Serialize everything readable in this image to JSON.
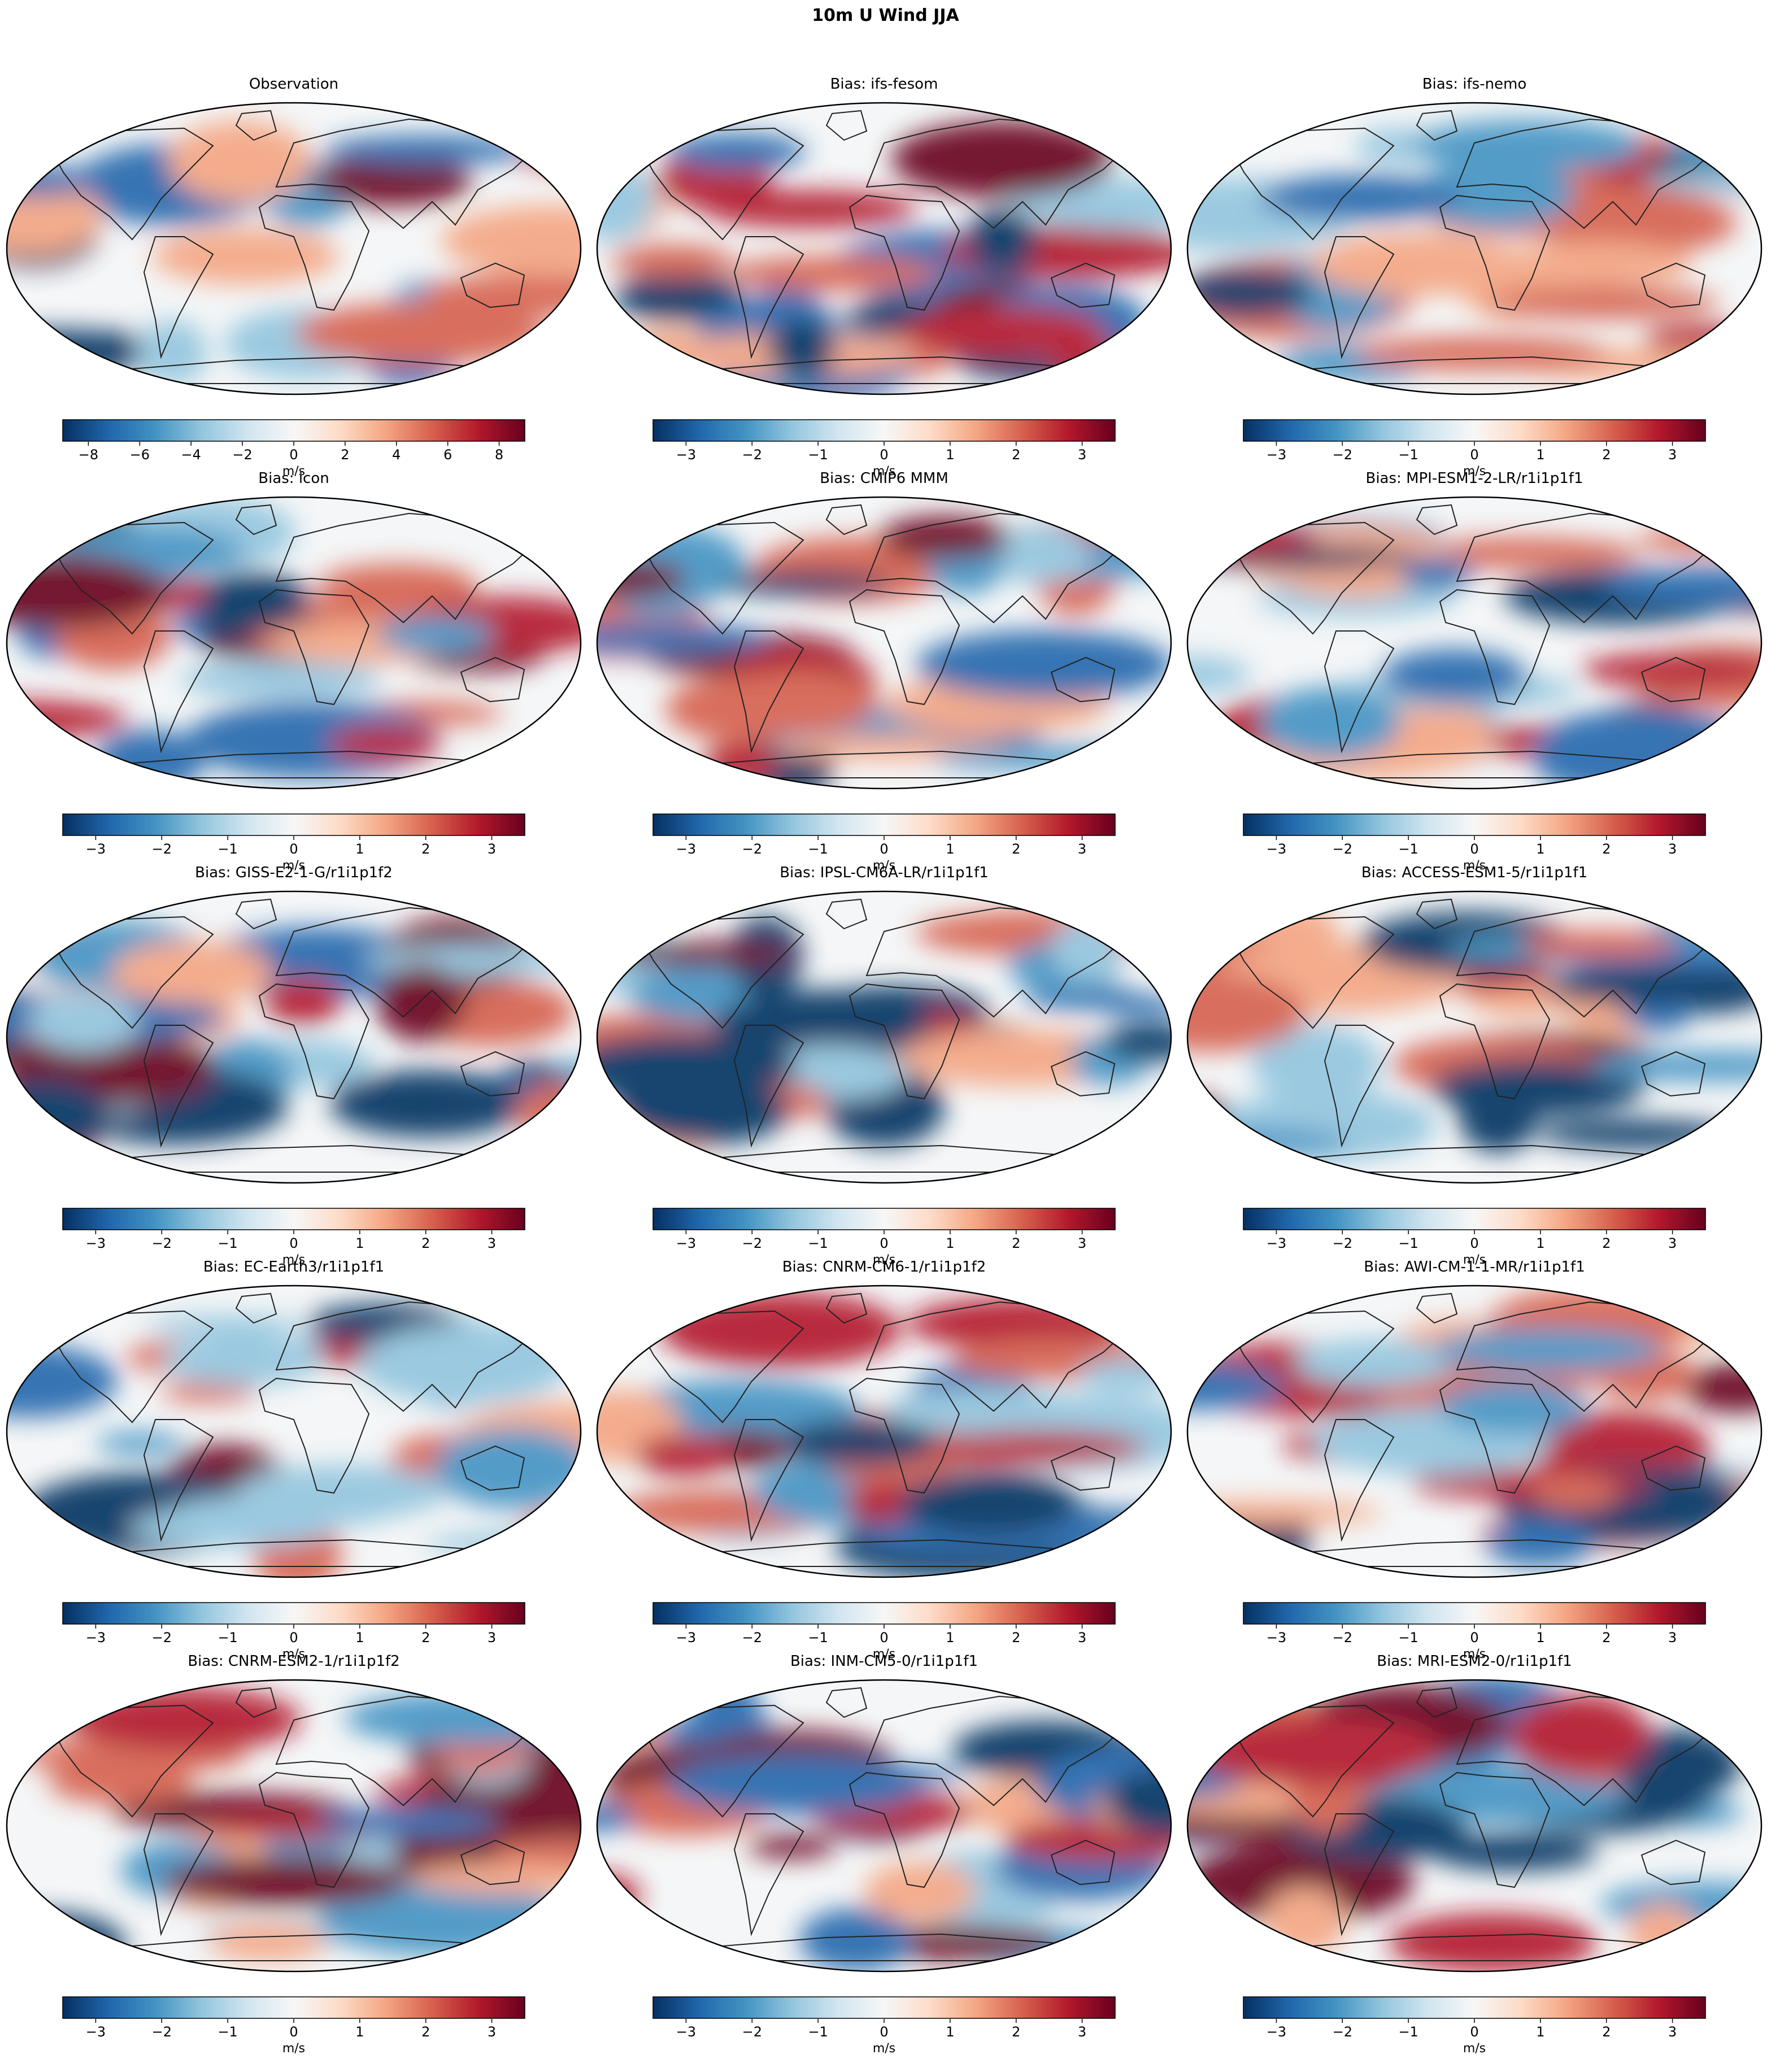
{
  "figure": {
    "title": "10m U Wind JJA"
  },
  "colormap": {
    "name": "RdBu_r",
    "stops": [
      "#053061",
      "#2166ac",
      "#4393c3",
      "#92c5de",
      "#d1e5f0",
      "#f7f7f7",
      "#fddbc7",
      "#f4a582",
      "#d6604d",
      "#b2182b",
      "#67001f"
    ]
  },
  "map_style": {
    "projection": "Robinson",
    "coastline_color": "#222222",
    "background": "#f4f6f7"
  },
  "chart_data": [
    {
      "type": "heatmap",
      "title": "Observation",
      "colorbar": {
        "vmin": -9,
        "vmax": 9,
        "ticks": [
          -8,
          -6,
          -4,
          -2,
          0,
          2,
          4,
          6,
          8
        ],
        "tick_labels": [
          "−8",
          "−6",
          "−4",
          "−2",
          "0",
          "2",
          "4",
          "6",
          "8"
        ],
        "label": "m/s"
      }
    },
    {
      "type": "heatmap",
      "title": "Bias: ifs-fesom",
      "colorbar": {
        "vmin": -3.5,
        "vmax": 3.5,
        "ticks": [
          -3,
          -2,
          -1,
          0,
          1,
          2,
          3
        ],
        "tick_labels": [
          "−3",
          "−2",
          "−1",
          "0",
          "1",
          "2",
          "3"
        ],
        "label": "m/s"
      }
    },
    {
      "type": "heatmap",
      "title": "Bias: ifs-nemo",
      "colorbar": {
        "vmin": -3.5,
        "vmax": 3.5,
        "ticks": [
          -3,
          -2,
          -1,
          0,
          1,
          2,
          3
        ],
        "tick_labels": [
          "−3",
          "−2",
          "−1",
          "0",
          "1",
          "2",
          "3"
        ],
        "label": "m/s"
      }
    },
    {
      "type": "heatmap",
      "title": "Bias: icon",
      "colorbar": {
        "vmin": -3.5,
        "vmax": 3.5,
        "ticks": [
          -3,
          -2,
          -1,
          0,
          1,
          2,
          3
        ],
        "tick_labels": [
          "−3",
          "−2",
          "−1",
          "0",
          "1",
          "2",
          "3"
        ],
        "label": "m/s"
      }
    },
    {
      "type": "heatmap",
      "title": "Bias: CMIP6 MMM",
      "colorbar": {
        "vmin": -3.5,
        "vmax": 3.5,
        "ticks": [
          -3,
          -2,
          -1,
          0,
          1,
          2,
          3
        ],
        "tick_labels": [
          "−3",
          "−2",
          "−1",
          "0",
          "1",
          "2",
          "3"
        ],
        "label": "m/s"
      }
    },
    {
      "type": "heatmap",
      "title": "Bias: MPI-ESM1-2-LR/r1i1p1f1",
      "colorbar": {
        "vmin": -3.5,
        "vmax": 3.5,
        "ticks": [
          -3,
          -2,
          -1,
          0,
          1,
          2,
          3
        ],
        "tick_labels": [
          "−3",
          "−2",
          "−1",
          "0",
          "1",
          "2",
          "3"
        ],
        "label": "m/s"
      }
    },
    {
      "type": "heatmap",
      "title": "Bias: GISS-E2-1-G/r1i1p1f2",
      "colorbar": {
        "vmin": -3.5,
        "vmax": 3.5,
        "ticks": [
          -3,
          -2,
          -1,
          0,
          1,
          2,
          3
        ],
        "tick_labels": [
          "−3",
          "−2",
          "−1",
          "0",
          "1",
          "2",
          "3"
        ],
        "label": "m/s"
      }
    },
    {
      "type": "heatmap",
      "title": "Bias: IPSL-CM6A-LR/r1i1p1f1",
      "colorbar": {
        "vmin": -3.5,
        "vmax": 3.5,
        "ticks": [
          -3,
          -2,
          -1,
          0,
          1,
          2,
          3
        ],
        "tick_labels": [
          "−3",
          "−2",
          "−1",
          "0",
          "1",
          "2",
          "3"
        ],
        "label": "m/s"
      }
    },
    {
      "type": "heatmap",
      "title": "Bias: ACCESS-ESM1-5/r1i1p1f1",
      "colorbar": {
        "vmin": -3.5,
        "vmax": 3.5,
        "ticks": [
          -3,
          -2,
          -1,
          0,
          1,
          2,
          3
        ],
        "tick_labels": [
          "−3",
          "−2",
          "−1",
          "0",
          "1",
          "2",
          "3"
        ],
        "label": "m/s"
      }
    },
    {
      "type": "heatmap",
      "title": "Bias: EC-Earth3/r1i1p1f1",
      "colorbar": {
        "vmin": -3.5,
        "vmax": 3.5,
        "ticks": [
          -3,
          -2,
          -1,
          0,
          1,
          2,
          3
        ],
        "tick_labels": [
          "−3",
          "−2",
          "−1",
          "0",
          "1",
          "2",
          "3"
        ],
        "label": "m/s"
      }
    },
    {
      "type": "heatmap",
      "title": "Bias: CNRM-CM6-1/r1i1p1f2",
      "colorbar": {
        "vmin": -3.5,
        "vmax": 3.5,
        "ticks": [
          -3,
          -2,
          -1,
          0,
          1,
          2,
          3
        ],
        "tick_labels": [
          "−3",
          "−2",
          "−1",
          "0",
          "1",
          "2",
          "3"
        ],
        "label": "m/s"
      }
    },
    {
      "type": "heatmap",
      "title": "Bias: AWI-CM-1-1-MR/r1i1p1f1",
      "colorbar": {
        "vmin": -3.5,
        "vmax": 3.5,
        "ticks": [
          -3,
          -2,
          -1,
          0,
          1,
          2,
          3
        ],
        "tick_labels": [
          "−3",
          "−2",
          "−1",
          "0",
          "1",
          "2",
          "3"
        ],
        "label": "m/s"
      }
    },
    {
      "type": "heatmap",
      "title": "Bias: CNRM-ESM2-1/r1i1p1f2",
      "colorbar": {
        "vmin": -3.5,
        "vmax": 3.5,
        "ticks": [
          -3,
          -2,
          -1,
          0,
          1,
          2,
          3
        ],
        "tick_labels": [
          "−3",
          "−2",
          "−1",
          "0",
          "1",
          "2",
          "3"
        ],
        "label": "m/s"
      }
    },
    {
      "type": "heatmap",
      "title": "Bias: INM-CM5-0/r1i1p1f1",
      "colorbar": {
        "vmin": -3.5,
        "vmax": 3.5,
        "ticks": [
          -3,
          -2,
          -1,
          0,
          1,
          2,
          3
        ],
        "tick_labels": [
          "−3",
          "−2",
          "−1",
          "0",
          "1",
          "2",
          "3"
        ],
        "label": "m/s"
      }
    },
    {
      "type": "heatmap",
      "title": "Bias: MRI-ESM2-0/r1i1p1f1",
      "colorbar": {
        "vmin": -3.5,
        "vmax": 3.5,
        "ticks": [
          -3,
          -2,
          -1,
          0,
          1,
          2,
          3
        ],
        "tick_labels": [
          "−3",
          "−2",
          "−1",
          "0",
          "1",
          "2",
          "3"
        ],
        "label": "m/s"
      }
    }
  ]
}
